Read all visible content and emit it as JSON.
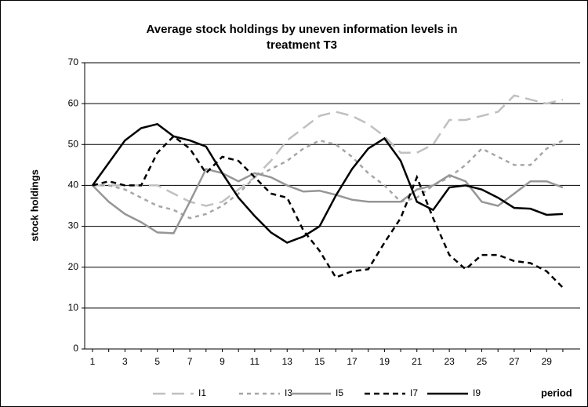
{
  "chart_data": {
    "type": "line",
    "title": [
      "Average stock holdings by uneven information levels in",
      "treatment T3"
    ],
    "y_label": "stock holdings",
    "x_label": "period",
    "categories": [
      "1",
      null,
      "3",
      null,
      "5",
      null,
      "7",
      null,
      "9",
      null,
      "11",
      null,
      "13",
      null,
      "15",
      null,
      "17",
      null,
      "19",
      null,
      "21",
      null,
      "23",
      null,
      "25",
      null,
      "27",
      null,
      "29",
      null
    ],
    "ylim": [
      0,
      70
    ],
    "yticks": [
      0,
      10,
      20,
      30,
      40,
      50,
      60,
      70
    ],
    "grid": true,
    "series": [
      {
        "name": "I1",
        "color": "#c0c0c0",
        "line_style": "long-dash",
        "values": [
          40,
          40,
          40,
          40,
          40,
          38,
          36,
          35,
          36,
          39,
          42,
          46,
          51,
          54,
          57,
          58,
          57,
          55,
          52,
          48,
          48,
          50,
          56,
          56,
          57,
          58,
          62,
          61,
          60,
          61
        ]
      },
      {
        "name": "I3",
        "color": "#a6a6a6",
        "line_style": "short-dash",
        "values": [
          40,
          40,
          39,
          37,
          35,
          34,
          32,
          33,
          35,
          38,
          42,
          44,
          46,
          49,
          51,
          50,
          47,
          43,
          40,
          36,
          37,
          40,
          42,
          45,
          49,
          47,
          45,
          45,
          49,
          51
        ]
      },
      {
        "name": "I5",
        "color": "#969696",
        "line_style": "solid",
        "values": [
          40,
          36,
          33,
          31,
          28.5,
          28.3,
          36,
          44,
          43,
          41,
          43,
          42,
          40,
          38.5,
          38.7,
          37.7,
          36.5,
          36,
          36,
          36,
          39,
          40,
          42.5,
          41,
          36,
          35,
          38,
          41,
          41,
          39.5
        ]
      },
      {
        "name": "I7",
        "color": "#000000",
        "line_style": "dash",
        "values": [
          40,
          41,
          40,
          40,
          48,
          52,
          49,
          43,
          47,
          46,
          42,
          38,
          37,
          29,
          24,
          17.5,
          19,
          19.5,
          26,
          32,
          42,
          32,
          23,
          19.5,
          23,
          23,
          21.5,
          21,
          19,
          15
        ]
      },
      {
        "name": "I9",
        "color": "#000000",
        "line_style": "solid",
        "values": [
          40,
          45.5,
          51,
          54,
          55,
          52,
          51,
          49.5,
          43,
          37,
          32.5,
          28.5,
          26,
          27.5,
          30,
          37.5,
          44,
          49,
          51.5,
          46,
          36,
          34,
          39.5,
          40,
          39,
          37,
          34.5,
          34.3,
          32.8,
          33
        ]
      }
    ]
  }
}
